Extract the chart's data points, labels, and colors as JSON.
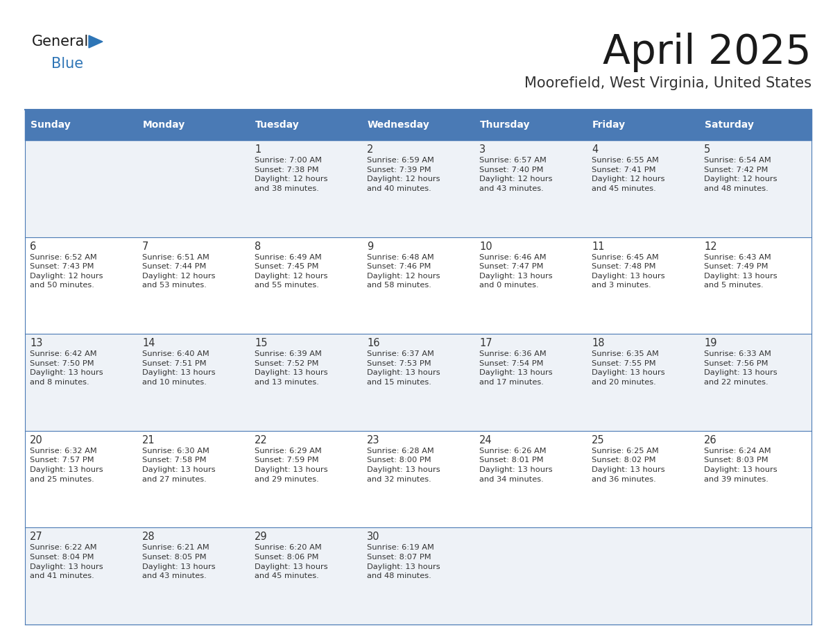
{
  "title": "April 2025",
  "subtitle": "Moorefield, West Virginia, United States",
  "header_bg": "#4a7ab5",
  "header_text_color": "#ffffff",
  "row_bg_odd": "#eef2f7",
  "row_bg_even": "#ffffff",
  "cell_border_color": "#4a7ab5",
  "text_color": "#333333",
  "days_of_week": [
    "Sunday",
    "Monday",
    "Tuesday",
    "Wednesday",
    "Thursday",
    "Friday",
    "Saturday"
  ],
  "weeks": [
    [
      {
        "day": "",
        "info": ""
      },
      {
        "day": "",
        "info": ""
      },
      {
        "day": "1",
        "info": "Sunrise: 7:00 AM\nSunset: 7:38 PM\nDaylight: 12 hours\nand 38 minutes."
      },
      {
        "day": "2",
        "info": "Sunrise: 6:59 AM\nSunset: 7:39 PM\nDaylight: 12 hours\nand 40 minutes."
      },
      {
        "day": "3",
        "info": "Sunrise: 6:57 AM\nSunset: 7:40 PM\nDaylight: 12 hours\nand 43 minutes."
      },
      {
        "day": "4",
        "info": "Sunrise: 6:55 AM\nSunset: 7:41 PM\nDaylight: 12 hours\nand 45 minutes."
      },
      {
        "day": "5",
        "info": "Sunrise: 6:54 AM\nSunset: 7:42 PM\nDaylight: 12 hours\nand 48 minutes."
      }
    ],
    [
      {
        "day": "6",
        "info": "Sunrise: 6:52 AM\nSunset: 7:43 PM\nDaylight: 12 hours\nand 50 minutes."
      },
      {
        "day": "7",
        "info": "Sunrise: 6:51 AM\nSunset: 7:44 PM\nDaylight: 12 hours\nand 53 minutes."
      },
      {
        "day": "8",
        "info": "Sunrise: 6:49 AM\nSunset: 7:45 PM\nDaylight: 12 hours\nand 55 minutes."
      },
      {
        "day": "9",
        "info": "Sunrise: 6:48 AM\nSunset: 7:46 PM\nDaylight: 12 hours\nand 58 minutes."
      },
      {
        "day": "10",
        "info": "Sunrise: 6:46 AM\nSunset: 7:47 PM\nDaylight: 13 hours\nand 0 minutes."
      },
      {
        "day": "11",
        "info": "Sunrise: 6:45 AM\nSunset: 7:48 PM\nDaylight: 13 hours\nand 3 minutes."
      },
      {
        "day": "12",
        "info": "Sunrise: 6:43 AM\nSunset: 7:49 PM\nDaylight: 13 hours\nand 5 minutes."
      }
    ],
    [
      {
        "day": "13",
        "info": "Sunrise: 6:42 AM\nSunset: 7:50 PM\nDaylight: 13 hours\nand 8 minutes."
      },
      {
        "day": "14",
        "info": "Sunrise: 6:40 AM\nSunset: 7:51 PM\nDaylight: 13 hours\nand 10 minutes."
      },
      {
        "day": "15",
        "info": "Sunrise: 6:39 AM\nSunset: 7:52 PM\nDaylight: 13 hours\nand 13 minutes."
      },
      {
        "day": "16",
        "info": "Sunrise: 6:37 AM\nSunset: 7:53 PM\nDaylight: 13 hours\nand 15 minutes."
      },
      {
        "day": "17",
        "info": "Sunrise: 6:36 AM\nSunset: 7:54 PM\nDaylight: 13 hours\nand 17 minutes."
      },
      {
        "day": "18",
        "info": "Sunrise: 6:35 AM\nSunset: 7:55 PM\nDaylight: 13 hours\nand 20 minutes."
      },
      {
        "day": "19",
        "info": "Sunrise: 6:33 AM\nSunset: 7:56 PM\nDaylight: 13 hours\nand 22 minutes."
      }
    ],
    [
      {
        "day": "20",
        "info": "Sunrise: 6:32 AM\nSunset: 7:57 PM\nDaylight: 13 hours\nand 25 minutes."
      },
      {
        "day": "21",
        "info": "Sunrise: 6:30 AM\nSunset: 7:58 PM\nDaylight: 13 hours\nand 27 minutes."
      },
      {
        "day": "22",
        "info": "Sunrise: 6:29 AM\nSunset: 7:59 PM\nDaylight: 13 hours\nand 29 minutes."
      },
      {
        "day": "23",
        "info": "Sunrise: 6:28 AM\nSunset: 8:00 PM\nDaylight: 13 hours\nand 32 minutes."
      },
      {
        "day": "24",
        "info": "Sunrise: 6:26 AM\nSunset: 8:01 PM\nDaylight: 13 hours\nand 34 minutes."
      },
      {
        "day": "25",
        "info": "Sunrise: 6:25 AM\nSunset: 8:02 PM\nDaylight: 13 hours\nand 36 minutes."
      },
      {
        "day": "26",
        "info": "Sunrise: 6:24 AM\nSunset: 8:03 PM\nDaylight: 13 hours\nand 39 minutes."
      }
    ],
    [
      {
        "day": "27",
        "info": "Sunrise: 6:22 AM\nSunset: 8:04 PM\nDaylight: 13 hours\nand 41 minutes."
      },
      {
        "day": "28",
        "info": "Sunrise: 6:21 AM\nSunset: 8:05 PM\nDaylight: 13 hours\nand 43 minutes."
      },
      {
        "day": "29",
        "info": "Sunrise: 6:20 AM\nSunset: 8:06 PM\nDaylight: 13 hours\nand 45 minutes."
      },
      {
        "day": "30",
        "info": "Sunrise: 6:19 AM\nSunset: 8:07 PM\nDaylight: 13 hours\nand 48 minutes."
      },
      {
        "day": "",
        "info": ""
      },
      {
        "day": "",
        "info": ""
      },
      {
        "day": "",
        "info": ""
      }
    ]
  ],
  "logo_text_general": "General",
  "logo_text_blue": "Blue",
  "logo_general_color": "#1a1a1a",
  "logo_blue_color": "#2e75b6",
  "logo_triangle_color": "#2e75b6",
  "fig_width": 11.88,
  "fig_height": 9.18,
  "dpi": 100
}
